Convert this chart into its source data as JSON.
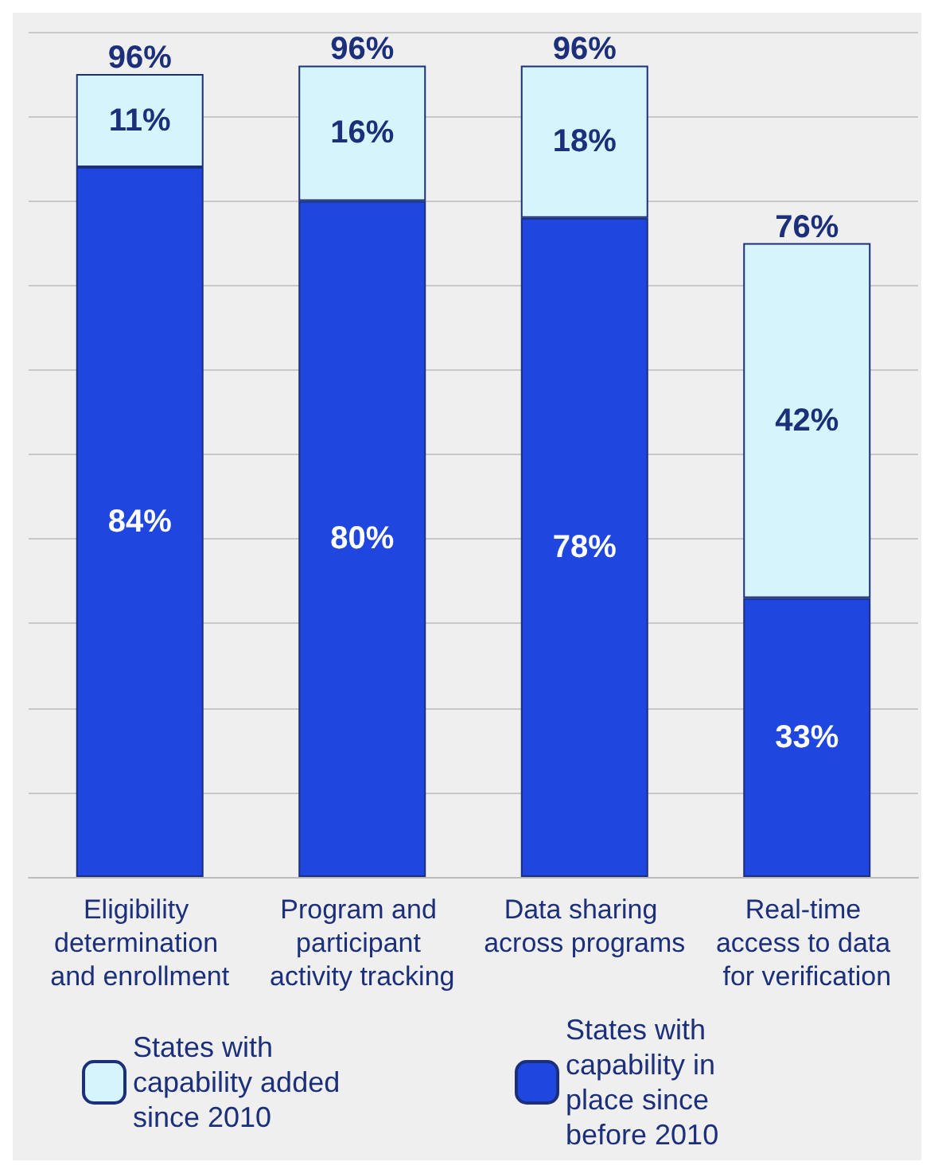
{
  "chart_data": {
    "type": "bar",
    "stacked": true,
    "relative": false,
    "categories": [
      "Eligibility determination and enrollment",
      "Program and participant activity tracking",
      "Data sharing across programs",
      "Real-time access to data for verification"
    ],
    "series": [
      {
        "name": "States with capability in place since before 2010",
        "color": "#1f47e0",
        "values": [
          84,
          80,
          78,
          33
        ],
        "value_labels": [
          "84%",
          "80%",
          "78%",
          "33%"
        ]
      },
      {
        "name": "States with capability added since 2010",
        "color": "#d5f4fb",
        "values": [
          11,
          16,
          18,
          42
        ],
        "value_labels": [
          "11%",
          "16%",
          "18%",
          "42%"
        ]
      }
    ],
    "totals": [
      "96%",
      "96%",
      "96%",
      "76%"
    ],
    "ylim": [
      0,
      100
    ],
    "yticks": [
      {
        "value": 0,
        "label": null
      },
      {
        "value": 10,
        "label": null
      },
      {
        "value": 20,
        "label": null
      },
      {
        "value": 30,
        "label": null
      },
      {
        "value": 40,
        "label": null
      },
      {
        "value": 50,
        "label": null
      },
      {
        "value": 60,
        "label": null
      },
      {
        "value": 70,
        "label": null
      },
      {
        "value": 80,
        "label": null
      },
      {
        "value": 90,
        "label": null
      },
      {
        "value": 100,
        "label": null
      }
    ],
    "tick_labels": "x",
    "grid": "y",
    "legend": "bottom"
  }
}
